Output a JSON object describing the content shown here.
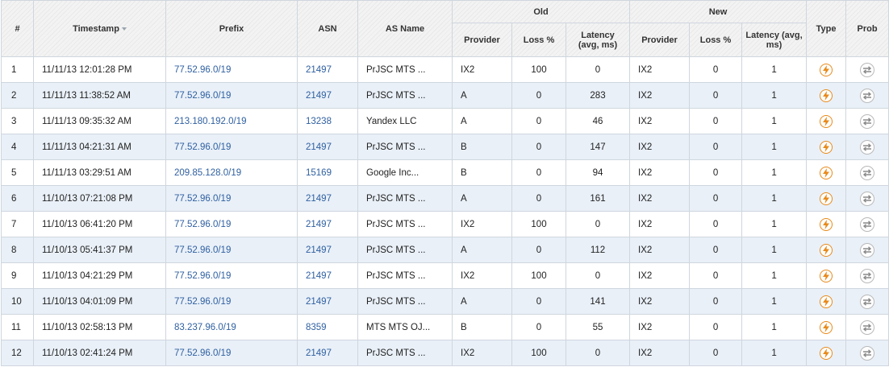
{
  "table": {
    "headers": {
      "num": "#",
      "timestamp": "Timestamp",
      "prefix": "Prefix",
      "asn": "ASN",
      "as_name": "AS Name",
      "old": "Old",
      "new": "New",
      "type": "Type",
      "prob": "Prob",
      "provider": "Provider",
      "loss": "Loss %",
      "latency": "Latency (avg, ms)"
    },
    "rows": [
      {
        "num": "1",
        "timestamp": "11/11/13 12:01:28 PM",
        "prefix": "77.52.96.0/19",
        "asn": "21497",
        "as_name": "PrJSC MTS ...",
        "old_provider": "IX2",
        "old_loss": "100",
        "old_latency": "0",
        "new_provider": "IX2",
        "new_loss": "0",
        "new_latency": "1",
        "type_icon": "bolt-icon",
        "prob_icon": "swap-icon"
      },
      {
        "num": "2",
        "timestamp": "11/11/13 11:38:52 AM",
        "prefix": "77.52.96.0/19",
        "asn": "21497",
        "as_name": "PrJSC MTS ...",
        "old_provider": "A",
        "old_loss": "0",
        "old_latency": "283",
        "new_provider": "IX2",
        "new_loss": "0",
        "new_latency": "1",
        "type_icon": "bolt-icon",
        "prob_icon": "swap-icon"
      },
      {
        "num": "3",
        "timestamp": "11/11/13 09:35:32 AM",
        "prefix": "213.180.192.0/19",
        "asn": "13238",
        "as_name": "Yandex LLC",
        "old_provider": "A",
        "old_loss": "0",
        "old_latency": "46",
        "new_provider": "IX2",
        "new_loss": "0",
        "new_latency": "1",
        "type_icon": "bolt-icon",
        "prob_icon": "swap-icon"
      },
      {
        "num": "4",
        "timestamp": "11/11/13 04:21:31 AM",
        "prefix": "77.52.96.0/19",
        "asn": "21497",
        "as_name": "PrJSC MTS ...",
        "old_provider": "B",
        "old_loss": "0",
        "old_latency": "147",
        "new_provider": "IX2",
        "new_loss": "0",
        "new_latency": "1",
        "type_icon": "bolt-icon",
        "prob_icon": "swap-icon"
      },
      {
        "num": "5",
        "timestamp": "11/11/13 03:29:51 AM",
        "prefix": "209.85.128.0/19",
        "asn": "15169",
        "as_name": "Google Inc...",
        "old_provider": "B",
        "old_loss": "0",
        "old_latency": "94",
        "new_provider": "IX2",
        "new_loss": "0",
        "new_latency": "1",
        "type_icon": "bolt-icon",
        "prob_icon": "swap-icon"
      },
      {
        "num": "6",
        "timestamp": "11/10/13 07:21:08 PM",
        "prefix": "77.52.96.0/19",
        "asn": "21497",
        "as_name": "PrJSC MTS ...",
        "old_provider": "A",
        "old_loss": "0",
        "old_latency": "161",
        "new_provider": "IX2",
        "new_loss": "0",
        "new_latency": "1",
        "type_icon": "bolt-icon",
        "prob_icon": "swap-icon"
      },
      {
        "num": "7",
        "timestamp": "11/10/13 06:41:20 PM",
        "prefix": "77.52.96.0/19",
        "asn": "21497",
        "as_name": "PrJSC MTS ...",
        "old_provider": "IX2",
        "old_loss": "100",
        "old_latency": "0",
        "new_provider": "IX2",
        "new_loss": "0",
        "new_latency": "1",
        "type_icon": "bolt-icon",
        "prob_icon": "swap-icon"
      },
      {
        "num": "8",
        "timestamp": "11/10/13 05:41:37 PM",
        "prefix": "77.52.96.0/19",
        "asn": "21497",
        "as_name": "PrJSC MTS ...",
        "old_provider": "A",
        "old_loss": "0",
        "old_latency": "112",
        "new_provider": "IX2",
        "new_loss": "0",
        "new_latency": "1",
        "type_icon": "bolt-icon",
        "prob_icon": "swap-icon"
      },
      {
        "num": "9",
        "timestamp": "11/10/13 04:21:29 PM",
        "prefix": "77.52.96.0/19",
        "asn": "21497",
        "as_name": "PrJSC MTS ...",
        "old_provider": "IX2",
        "old_loss": "100",
        "old_latency": "0",
        "new_provider": "IX2",
        "new_loss": "0",
        "new_latency": "1",
        "type_icon": "bolt-icon",
        "prob_icon": "swap-icon"
      },
      {
        "num": "10",
        "timestamp": "11/10/13 04:01:09 PM",
        "prefix": "77.52.96.0/19",
        "asn": "21497",
        "as_name": "PrJSC MTS ...",
        "old_provider": "A",
        "old_loss": "0",
        "old_latency": "141",
        "new_provider": "IX2",
        "new_loss": "0",
        "new_latency": "1",
        "type_icon": "bolt-icon",
        "prob_icon": "swap-icon"
      },
      {
        "num": "11",
        "timestamp": "11/10/13 02:58:13 PM",
        "prefix": "83.237.96.0/19",
        "asn": "8359",
        "as_name": "MTS MTS OJ...",
        "old_provider": "B",
        "old_loss": "0",
        "old_latency": "55",
        "new_provider": "IX2",
        "new_loss": "0",
        "new_latency": "1",
        "type_icon": "bolt-icon",
        "prob_icon": "swap-icon"
      },
      {
        "num": "12",
        "timestamp": "11/10/13 02:41:24 PM",
        "prefix": "77.52.96.0/19",
        "asn": "21497",
        "as_name": "PrJSC MTS ...",
        "old_provider": "IX2",
        "old_loss": "100",
        "old_latency": "0",
        "new_provider": "IX2",
        "new_loss": "0",
        "new_latency": "1",
        "type_icon": "bolt-icon",
        "prob_icon": "swap-icon"
      }
    ]
  },
  "colors": {
    "link": "#2e5fa0",
    "row_alt": "#e9f0f8",
    "bolt_accent": "#e88a1a",
    "border": "#cfd6de"
  }
}
